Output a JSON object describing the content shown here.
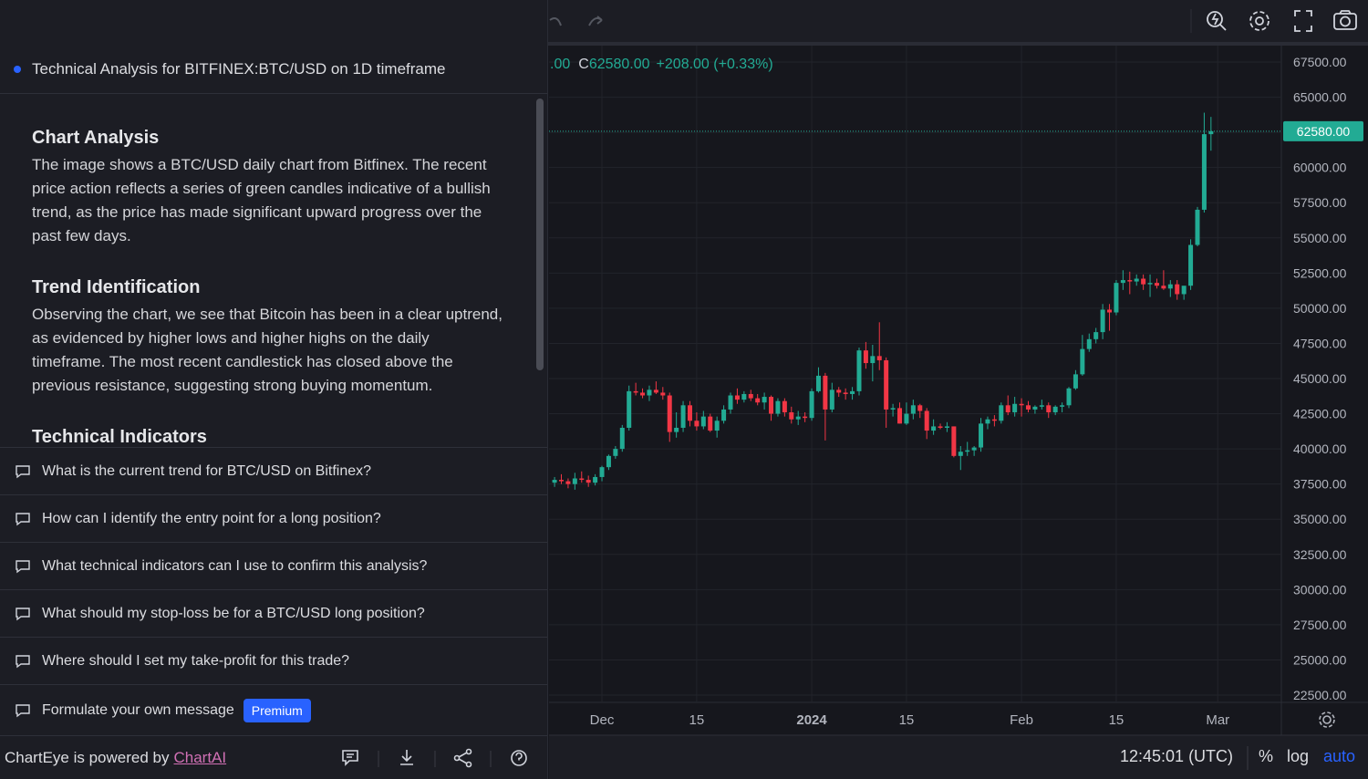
{
  "panel": {
    "header": "Technical Analysis for BITFINEX:BTC/USD on 1D timeframe",
    "sections": [
      {
        "title": "Chart Analysis",
        "body": "The image shows a BTC/USD daily chart from Bitfinex. The recent price action reflects a series of green candles indicative of a bullish trend, as the price has made significant upward progress over the past few days."
      },
      {
        "title": "Trend Identification",
        "body": "Observing the chart, we see that Bitcoin has been in a clear uptrend, as evidenced by higher lows and higher highs on the daily timeframe. The most recent candlestick has closed above the previous resistance, suggesting strong buying momentum."
      },
      {
        "title": "Technical Indicators"
      }
    ],
    "suggestions": [
      "What is the current trend for BTC/USD on Bitfinex?",
      "How can I identify the entry point for a long position?",
      "What technical indicators can I use to confirm this analysis?",
      "What should my stop-loss be for a BTC/USD long position?",
      "Where should I set my take-profit for this trade?"
    ],
    "own_message": "Formulate your own message",
    "premium": "Premium",
    "footer": {
      "text": "ChartEye is powered by",
      "link": "ChartAI"
    }
  },
  "chart_data": {
    "type": "candlestick",
    "legend": {
      "open_tail": ".00",
      "close_key": "C",
      "close_value": "62580.00",
      "change": "+208.00 (+0.33%)"
    },
    "up_color": "#22ab94",
    "down_color": "#f23645",
    "grid": true,
    "last_price": {
      "value": 62580,
      "label": "62580.00"
    },
    "xlim": [
      -0.82,
      107.4
    ],
    "xticks": [
      {
        "value": 7,
        "label": "Dec"
      },
      {
        "value": 21,
        "label": "15"
      },
      {
        "value": 38,
        "label": "2024"
      },
      {
        "value": 52,
        "label": "15"
      },
      {
        "value": 69,
        "label": "Feb"
      },
      {
        "value": 83,
        "label": "15"
      },
      {
        "value": 98,
        "label": "Mar"
      }
    ],
    "ylim": [
      21981,
      68668
    ],
    "yticks": [
      {
        "value": 22500,
        "label": "22500.00"
      },
      {
        "value": 25000,
        "label": "25000.00"
      },
      {
        "value": 27500,
        "label": "27500.00"
      },
      {
        "value": 30000,
        "label": "30000.00"
      },
      {
        "value": 32500,
        "label": "32500.00"
      },
      {
        "value": 35000,
        "label": "35000.00"
      },
      {
        "value": 37500,
        "label": "37500.00"
      },
      {
        "value": 40000,
        "label": "40000.00"
      },
      {
        "value": 42500,
        "label": "42500.00"
      },
      {
        "value": 45000,
        "label": "45000.00"
      },
      {
        "value": 47500,
        "label": "47500.00"
      },
      {
        "value": 50000,
        "label": "50000.00"
      },
      {
        "value": 52500,
        "label": "52500.00"
      },
      {
        "value": 55000,
        "label": "55000.00"
      },
      {
        "value": 57500,
        "label": "57500.00"
      },
      {
        "value": 60000,
        "label": "60000.00"
      },
      {
        "value": 62500,
        "label": "62500.00"
      },
      {
        "value": 65000,
        "label": "65000.00"
      },
      {
        "value": 67500,
        "label": "67500.00"
      }
    ],
    "ohlc": [
      [
        37600,
        38000,
        37300,
        37800
      ],
      [
        37800,
        38200,
        37500,
        37700
      ],
      [
        37700,
        37900,
        37200,
        37500
      ],
      [
        37500,
        38300,
        37100,
        37900
      ],
      [
        37900,
        38400,
        37600,
        37800
      ],
      [
        37800,
        38100,
        37300,
        37600
      ],
      [
        37600,
        38200,
        37400,
        38000
      ],
      [
        38000,
        38800,
        37700,
        38700
      ],
      [
        38700,
        39600,
        38500,
        39500
      ],
      [
        39500,
        40200,
        39300,
        40000
      ],
      [
        40000,
        41700,
        39800,
        41500
      ],
      [
        41500,
        44500,
        41300,
        44100
      ],
      [
        44100,
        44700,
        43800,
        44000
      ],
      [
        44000,
        44300,
        43600,
        43800
      ],
      [
        43800,
        44500,
        43400,
        44200
      ],
      [
        44200,
        44800,
        43900,
        44000
      ],
      [
        44000,
        44400,
        43500,
        43800
      ],
      [
        43800,
        44000,
        40500,
        41200
      ],
      [
        41200,
        42600,
        40800,
        41500
      ],
      [
        41500,
        43400,
        41200,
        43100
      ],
      [
        43100,
        43400,
        41600,
        42000
      ],
      [
        42000,
        42600,
        41300,
        41600
      ],
      [
        41600,
        42700,
        41400,
        42300
      ],
      [
        42300,
        42500,
        41200,
        41300
      ],
      [
        41300,
        42300,
        40800,
        42000
      ],
      [
        42000,
        43100,
        41800,
        42800
      ],
      [
        42800,
        44000,
        42500,
        43800
      ],
      [
        43800,
        44300,
        43200,
        43500
      ],
      [
        43500,
        44100,
        43300,
        43900
      ],
      [
        43900,
        44200,
        43400,
        43600
      ],
      [
        43600,
        43900,
        43100,
        43300
      ],
      [
        43300,
        44000,
        42800,
        43700
      ],
      [
        43700,
        43800,
        42000,
        42500
      ],
      [
        42500,
        43600,
        42300,
        43400
      ],
      [
        43400,
        43600,
        42300,
        42600
      ],
      [
        42600,
        43000,
        41800,
        42100
      ],
      [
        42100,
        42700,
        41700,
        42300
      ],
      [
        42300,
        42600,
        41900,
        42200
      ],
      [
        42200,
        44300,
        42000,
        44100
      ],
      [
        44100,
        45800,
        44000,
        45200
      ],
      [
        45200,
        45400,
        40600,
        42800
      ],
      [
        42800,
        44700,
        42600,
        44200
      ],
      [
        44200,
        44400,
        43700,
        44000
      ],
      [
        44000,
        44300,
        43500,
        43900
      ],
      [
        43900,
        44400,
        43500,
        44100
      ],
      [
        44100,
        47200,
        43800,
        47000
      ],
      [
        47000,
        47600,
        45700,
        46100
      ],
      [
        46100,
        47400,
        44800,
        46600
      ],
      [
        46600,
        49000,
        45600,
        46300
      ],
      [
        46300,
        46500,
        41500,
        42800
      ],
      [
        42800,
        43200,
        42300,
        42900
      ],
      [
        42900,
        43300,
        41800,
        41800
      ],
      [
        41800,
        43300,
        41700,
        42500
      ],
      [
        42500,
        43500,
        42100,
        43100
      ],
      [
        43100,
        43200,
        42200,
        42700
      ],
      [
        42700,
        42900,
        40700,
        41300
      ],
      [
        41300,
        42100,
        41000,
        41600
      ],
      [
        41600,
        41800,
        41400,
        41500
      ],
      [
        41500,
        41900,
        41200,
        41600
      ],
      [
        41600,
        41600,
        39400,
        39500
      ],
      [
        39500,
        40200,
        38500,
        39800
      ],
      [
        39800,
        40500,
        39500,
        39900
      ],
      [
        39900,
        40200,
        39500,
        40100
      ],
      [
        40100,
        42200,
        39800,
        41800
      ],
      [
        41800,
        42300,
        41400,
        42100
      ],
      [
        42100,
        42400,
        41600,
        42000
      ],
      [
        42000,
        43300,
        41800,
        43100
      ],
      [
        43100,
        43800,
        42400,
        42600
      ],
      [
        42600,
        43700,
        42300,
        43200
      ],
      [
        43200,
        43600,
        42300,
        43100
      ],
      [
        43100,
        43400,
        42600,
        42800
      ],
      [
        42800,
        43100,
        42500,
        43000
      ],
      [
        43000,
        43500,
        42800,
        43100
      ],
      [
        43100,
        43300,
        42200,
        42600
      ],
      [
        42600,
        43100,
        42400,
        43000
      ],
      [
        43000,
        43300,
        42600,
        43100
      ],
      [
        43100,
        44400,
        42900,
        44300
      ],
      [
        44300,
        45600,
        44200,
        45300
      ],
      [
        45300,
        48100,
        45200,
        47100
      ],
      [
        47100,
        48200,
        46900,
        47800
      ],
      [
        47800,
        48600,
        47500,
        48300
      ],
      [
        48300,
        50300,
        47800,
        49900
      ],
      [
        49900,
        50300,
        48400,
        49700
      ],
      [
        49700,
        52000,
        49500,
        51800
      ],
      [
        51800,
        52700,
        51300,
        52000
      ],
      [
        52000,
        52600,
        51000,
        51900
      ],
      [
        51900,
        52400,
        51600,
        52100
      ],
      [
        52100,
        52400,
        51300,
        51700
      ],
      [
        51700,
        52400,
        50800,
        51800
      ],
      [
        51800,
        52100,
        51400,
        51600
      ],
      [
        51600,
        52700,
        51300,
        51400
      ],
      [
        51400,
        52000,
        50800,
        51700
      ],
      [
        51700,
        52000,
        50600,
        51000
      ],
      [
        51000,
        51500,
        50600,
        51600
      ],
      [
        51600,
        54900,
        51300,
        54500
      ],
      [
        54500,
        57200,
        54400,
        57000
      ],
      [
        57000,
        63900,
        56800,
        62372
      ],
      [
        62372,
        63600,
        61200,
        62580
      ]
    ]
  },
  "status": {
    "time": "12:45:01 (UTC)",
    "percent": "%",
    "log": "log",
    "auto": "auto"
  }
}
